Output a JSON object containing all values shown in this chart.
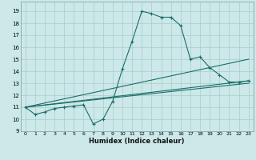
{
  "xlabel": "Humidex (Indice chaleur)",
  "bg_color": "#cce8e8",
  "grid_color": "#aacccc",
  "line_color": "#1a6e6a",
  "xlim": [
    -0.5,
    23.5
  ],
  "ylim": [
    9.0,
    19.8
  ],
  "yticks": [
    9,
    10,
    11,
    12,
    13,
    14,
    15,
    16,
    17,
    18,
    19
  ],
  "xticks": [
    0,
    1,
    2,
    3,
    4,
    5,
    6,
    7,
    8,
    9,
    10,
    11,
    12,
    13,
    14,
    15,
    16,
    17,
    18,
    19,
    20,
    21,
    22,
    23
  ],
  "line1_x": [
    0,
    1,
    2,
    3,
    4,
    5,
    6,
    7,
    8,
    9,
    10,
    11,
    12,
    13,
    14,
    15,
    16,
    17,
    18,
    19,
    20,
    21,
    22,
    23
  ],
  "line1_y": [
    11.0,
    10.4,
    10.6,
    10.9,
    11.0,
    11.1,
    11.2,
    9.6,
    10.0,
    11.5,
    14.2,
    16.5,
    19.0,
    18.8,
    18.5,
    18.5,
    17.8,
    15.0,
    15.2,
    14.3,
    13.7,
    13.1,
    13.1,
    13.2
  ],
  "line2_x": [
    0,
    23
  ],
  "line2_y": [
    11.0,
    13.0
  ],
  "line3_x": [
    0,
    23
  ],
  "line3_y": [
    11.0,
    13.2
  ],
  "line4_x": [
    0,
    23
  ],
  "line4_y": [
    11.0,
    15.0
  ]
}
